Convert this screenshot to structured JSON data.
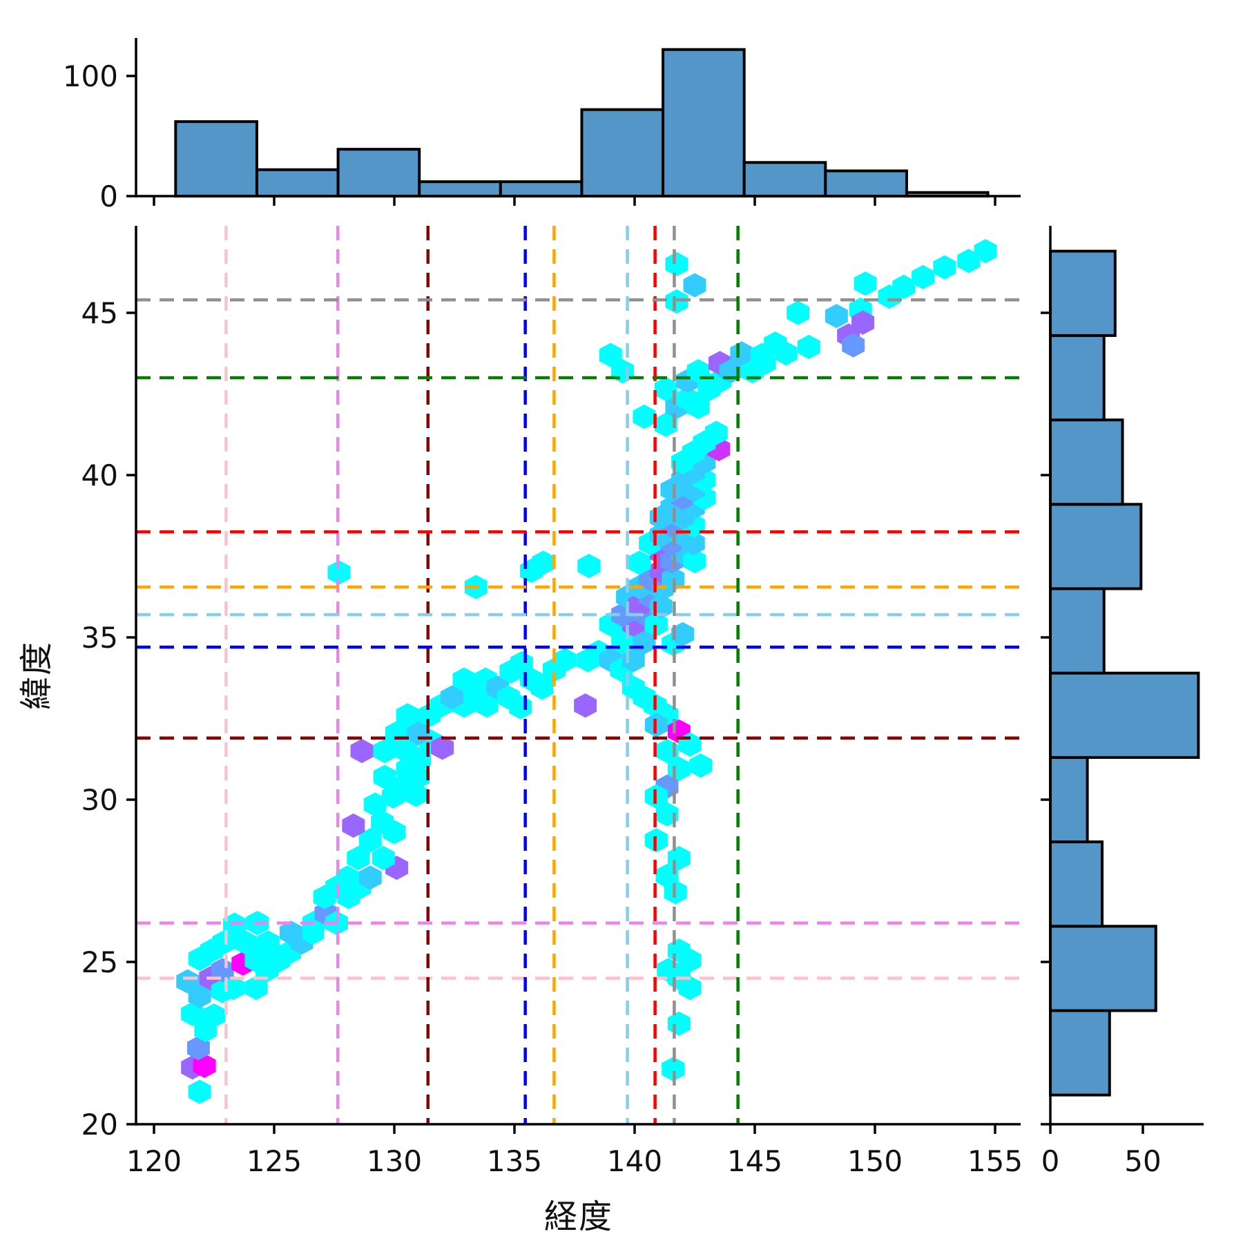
{
  "chart_data": {
    "type": "hexbin",
    "title": "",
    "xlabel": "経度",
    "ylabel": "緯度",
    "xlim": [
      119.25,
      156.05
    ],
    "ylim": [
      20.0,
      47.7
    ],
    "x_ticks": [
      120,
      125,
      130,
      135,
      140,
      145,
      150,
      155
    ],
    "y_ticks": [
      20,
      25,
      30,
      35,
      40,
      45
    ],
    "grid": false,
    "hexbin": {
      "palette": [
        "#00ffff",
        "#33ccff",
        "#6699ff",
        "#9966ff",
        "#cc33ff",
        "#ff00ff"
      ],
      "hex_width_deg": 0.95,
      "hex_height_deg": 0.75,
      "cells": [
        [
          121.9,
          21.0,
          1
        ],
        [
          121.6,
          21.75,
          4
        ],
        [
          122.1,
          21.8,
          6
        ],
        [
          121.85,
          22.35,
          3
        ],
        [
          122.15,
          22.9,
          1
        ],
        [
          121.6,
          23.4,
          1
        ],
        [
          122.5,
          23.35,
          1
        ],
        [
          121.9,
          23.95,
          2
        ],
        [
          121.4,
          24.4,
          2
        ],
        [
          122.35,
          24.5,
          4
        ],
        [
          122.85,
          24.1,
          1
        ],
        [
          123.3,
          24.2,
          1
        ],
        [
          124.25,
          24.2,
          1
        ],
        [
          122.85,
          24.75,
          3
        ],
        [
          123.7,
          24.95,
          6
        ],
        [
          124.25,
          25.05,
          1
        ],
        [
          124.7,
          24.75,
          1
        ],
        [
          125.2,
          25.05,
          1
        ],
        [
          121.9,
          25.1,
          1
        ],
        [
          122.4,
          25.35,
          1
        ],
        [
          122.9,
          25.6,
          1
        ],
        [
          123.8,
          25.6,
          1
        ],
        [
          124.75,
          25.6,
          1
        ],
        [
          125.65,
          25.3,
          1
        ],
        [
          126.15,
          25.6,
          2
        ],
        [
          126.6,
          25.9,
          1
        ],
        [
          125.7,
          25.9,
          2
        ],
        [
          123.35,
          26.15,
          1
        ],
        [
          124.3,
          26.2,
          1
        ],
        [
          126.65,
          26.2,
          1
        ],
        [
          127.15,
          26.5,
          3
        ],
        [
          127.6,
          26.2,
          1
        ],
        [
          127.1,
          27.0,
          1
        ],
        [
          127.6,
          27.3,
          1
        ],
        [
          128.1,
          27.0,
          1
        ],
        [
          128.05,
          27.6,
          1
        ],
        [
          128.55,
          27.3,
          1
        ],
        [
          129.0,
          27.6,
          2
        ],
        [
          130.1,
          27.9,
          4
        ],
        [
          129.55,
          28.2,
          1
        ],
        [
          128.5,
          28.2,
          1
        ],
        [
          129.0,
          28.75,
          1
        ],
        [
          128.3,
          29.2,
          4
        ],
        [
          129.5,
          29.3,
          1
        ],
        [
          130.0,
          29.0,
          1
        ],
        [
          129.2,
          29.85,
          1
        ],
        [
          129.95,
          30.1,
          1
        ],
        [
          130.9,
          30.15,
          1
        ],
        [
          130.4,
          30.45,
          1
        ],
        [
          129.6,
          30.7,
          1
        ],
        [
          130.55,
          30.95,
          1
        ],
        [
          131.0,
          30.7,
          1
        ],
        [
          128.65,
          31.5,
          4
        ],
        [
          129.6,
          31.5,
          1
        ],
        [
          130.5,
          31.5,
          1
        ],
        [
          131.05,
          31.25,
          1
        ],
        [
          131.5,
          31.8,
          1
        ],
        [
          130.1,
          32.05,
          1
        ],
        [
          131.0,
          32.05,
          2
        ],
        [
          132.0,
          31.6,
          4
        ],
        [
          130.55,
          32.6,
          1
        ],
        [
          131.45,
          32.6,
          1
        ],
        [
          131.95,
          32.9,
          1
        ],
        [
          132.9,
          32.9,
          1
        ],
        [
          132.4,
          33.15,
          2
        ],
        [
          133.35,
          33.15,
          1
        ],
        [
          133.85,
          32.9,
          1
        ],
        [
          132.9,
          33.7,
          1
        ],
        [
          133.8,
          33.7,
          1
        ],
        [
          134.3,
          33.45,
          2
        ],
        [
          134.75,
          33.15,
          1
        ],
        [
          135.25,
          32.85,
          1
        ],
        [
          134.85,
          33.95,
          1
        ],
        [
          135.7,
          33.7,
          1
        ],
        [
          135.3,
          34.2,
          1
        ],
        [
          136.15,
          33.45,
          1
        ],
        [
          133.4,
          36.55,
          1
        ],
        [
          135.7,
          37.05,
          1
        ],
        [
          136.2,
          37.3,
          1
        ],
        [
          138.1,
          37.2,
          1
        ],
        [
          127.7,
          37.0,
          1
        ],
        [
          136.65,
          34.0,
          1
        ],
        [
          137.1,
          34.3,
          1
        ],
        [
          138.05,
          34.3,
          1
        ],
        [
          138.5,
          34.55,
          1
        ],
        [
          139.0,
          34.3,
          2
        ],
        [
          139.45,
          34.0,
          1
        ],
        [
          139.95,
          34.3,
          2
        ],
        [
          139.5,
          34.85,
          1
        ],
        [
          140.4,
          34.85,
          2
        ],
        [
          139.0,
          35.4,
          1
        ],
        [
          139.95,
          35.4,
          4
        ],
        [
          139.5,
          35.7,
          3
        ],
        [
          140.45,
          35.7,
          3
        ],
        [
          140.9,
          35.4,
          1
        ],
        [
          139.7,
          36.25,
          2
        ],
        [
          140.2,
          36.0,
          4
        ],
        [
          140.65,
          36.25,
          3
        ],
        [
          141.1,
          35.95,
          2
        ],
        [
          141.15,
          36.5,
          2
        ],
        [
          140.2,
          36.55,
          2
        ],
        [
          141.6,
          34.8,
          1
        ],
        [
          142.0,
          35.1,
          2
        ],
        [
          139.95,
          33.45,
          1
        ],
        [
          140.4,
          33.15,
          1
        ],
        [
          140.85,
          32.9,
          1
        ],
        [
          141.35,
          32.6,
          1
        ],
        [
          140.9,
          32.3,
          2
        ],
        [
          141.85,
          32.1,
          6
        ],
        [
          141.35,
          31.5,
          1
        ],
        [
          141.85,
          30.95,
          1
        ],
        [
          141.35,
          30.4,
          3
        ],
        [
          140.9,
          30.1,
          1
        ],
        [
          141.35,
          29.55,
          1
        ],
        [
          140.9,
          28.75,
          1
        ],
        [
          141.85,
          28.2,
          1
        ],
        [
          141.35,
          27.65,
          1
        ],
        [
          141.7,
          27.15,
          1
        ],
        [
          141.85,
          25.35,
          1
        ],
        [
          142.3,
          25.05,
          1
        ],
        [
          141.85,
          24.5,
          1
        ],
        [
          142.3,
          24.2,
          1
        ],
        [
          141.4,
          24.75,
          1
        ],
        [
          141.85,
          23.1,
          1
        ],
        [
          141.6,
          21.7,
          1
        ],
        [
          137.95,
          32.9,
          4
        ],
        [
          142.3,
          31.7,
          1
        ],
        [
          142.75,
          31.05,
          1
        ],
        [
          140.65,
          36.8,
          3
        ],
        [
          141.1,
          37.05,
          4
        ],
        [
          141.6,
          36.8,
          2
        ],
        [
          140.2,
          37.3,
          1
        ],
        [
          141.1,
          37.6,
          4
        ],
        [
          141.55,
          37.35,
          3
        ],
        [
          142.0,
          37.6,
          2
        ],
        [
          142.5,
          37.35,
          1
        ],
        [
          140.65,
          37.9,
          1
        ],
        [
          141.55,
          37.9,
          3
        ],
        [
          142.45,
          37.9,
          2
        ],
        [
          141.1,
          38.15,
          2
        ],
        [
          142.0,
          38.15,
          2
        ],
        [
          141.55,
          38.45,
          3
        ],
        [
          142.45,
          38.45,
          1
        ],
        [
          141.1,
          38.7,
          2
        ],
        [
          142.0,
          38.7,
          2
        ],
        [
          141.55,
          39.0,
          2
        ],
        [
          142.45,
          39.0,
          2
        ],
        [
          142.0,
          39.3,
          3
        ],
        [
          142.9,
          39.3,
          1
        ],
        [
          141.55,
          39.55,
          2
        ],
        [
          142.45,
          39.55,
          2
        ],
        [
          142.0,
          39.85,
          2
        ],
        [
          142.9,
          39.85,
          1
        ],
        [
          142.45,
          40.1,
          2
        ],
        [
          142.0,
          40.4,
          1
        ],
        [
          142.9,
          40.4,
          2
        ],
        [
          142.45,
          40.7,
          1
        ],
        [
          143.5,
          40.8,
          5
        ],
        [
          142.9,
          41.0,
          1
        ],
        [
          143.4,
          41.3,
          1
        ],
        [
          140.4,
          41.8,
          1
        ],
        [
          141.3,
          41.55,
          1
        ],
        [
          141.75,
          42.1,
          2
        ],
        [
          142.2,
          42.35,
          1
        ],
        [
          142.65,
          42.1,
          1
        ],
        [
          141.3,
          42.65,
          1
        ],
        [
          142.2,
          42.9,
          2
        ],
        [
          143.1,
          42.65,
          1
        ],
        [
          143.55,
          42.9,
          1
        ],
        [
          142.65,
          43.2,
          1
        ],
        [
          143.55,
          43.45,
          4
        ],
        [
          144.0,
          43.2,
          2
        ],
        [
          144.9,
          43.2,
          1
        ],
        [
          144.45,
          43.75,
          2
        ],
        [
          145.4,
          43.45,
          1
        ],
        [
          145.3,
          43.7,
          1
        ],
        [
          145.85,
          44.05,
          1
        ],
        [
          146.3,
          43.75,
          1
        ],
        [
          147.25,
          43.95,
          1
        ],
        [
          139.0,
          43.7,
          1
        ],
        [
          139.5,
          43.2,
          1
        ],
        [
          141.75,
          45.35,
          1
        ],
        [
          141.75,
          46.5,
          1
        ],
        [
          142.5,
          45.85,
          2
        ],
        [
          146.8,
          45.0,
          1
        ],
        [
          148.4,
          44.9,
          2
        ],
        [
          149.4,
          45.1,
          1
        ],
        [
          149.5,
          44.7,
          4
        ],
        [
          148.9,
          44.3,
          4
        ],
        [
          149.1,
          44.0,
          3
        ],
        [
          150.6,
          45.5,
          1
        ],
        [
          151.2,
          45.8,
          1
        ],
        [
          149.6,
          45.9,
          1
        ],
        [
          152.0,
          46.1,
          1
        ],
        [
          152.9,
          46.4,
          1
        ],
        [
          153.9,
          46.6,
          1
        ],
        [
          154.6,
          46.9,
          1
        ]
      ]
    },
    "reference_lines": [
      {
        "name": "pink",
        "color": "#ffc0cb",
        "lon": 123.0,
        "lat": 24.5
      },
      {
        "name": "violet",
        "color": "#ee82ee",
        "lon": 127.65,
        "lat": 26.2
      },
      {
        "name": "darkred",
        "color": "#8b0000",
        "lon": 131.4,
        "lat": 31.9
      },
      {
        "name": "blue",
        "color": "#0000ff",
        "lon": 135.45,
        "lat": 34.7
      },
      {
        "name": "orange",
        "color": "#ffa500",
        "lon": 136.65,
        "lat": 36.55
      },
      {
        "name": "skyblue",
        "color": "#87ceeb",
        "lon": 139.7,
        "lat": 35.7
      },
      {
        "name": "red",
        "color": "#ff0000",
        "lon": 140.85,
        "lat": 38.25
      },
      {
        "name": "gray",
        "color": "#909090",
        "lon": 141.65,
        "lat": 45.4
      },
      {
        "name": "green",
        "color": "#008000",
        "lon": 144.3,
        "lat": 43.0
      }
    ],
    "top_histogram": {
      "orientation": "vertical",
      "bin_start": 120.9,
      "bin_width": 3.38,
      "counts": [
        62,
        22,
        39,
        12,
        12,
        72,
        122,
        28,
        21,
        3
      ],
      "axis_ticks": [
        0,
        100
      ],
      "axis_max": 132,
      "bar_color": "#5596c8",
      "bar_edge_color": "#000000"
    },
    "right_histogram": {
      "orientation": "horizontal",
      "bin_start": 20.9,
      "bin_width": 2.6,
      "counts": [
        32,
        57,
        28,
        20,
        80,
        29,
        49,
        39,
        29,
        35
      ],
      "axis_ticks": [
        0,
        50
      ],
      "axis_max": 83,
      "bar_color": "#5596c8",
      "bar_edge_color": "#000000"
    }
  }
}
